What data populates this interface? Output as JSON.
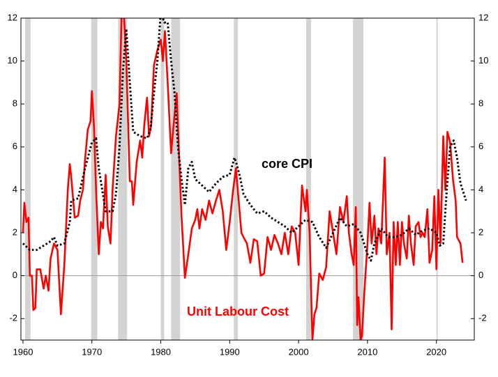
{
  "chart_data": {
    "type": "line",
    "annotations": [
      "core CPI",
      "Unit Labour Cost"
    ],
    "xlim": [
      1959.7,
      2025.5
    ],
    "xticks": [
      1960,
      1970,
      1980,
      1990,
      2000,
      2010,
      2020
    ],
    "ylim": [
      -3,
      12
    ],
    "yticks": [
      -2,
      0,
      2,
      4,
      6,
      8,
      10,
      12
    ],
    "y2lim": [
      -3,
      12
    ],
    "y2ticks": [
      -2,
      0,
      2,
      4,
      6,
      8,
      10,
      12
    ],
    "recessions": [
      [
        1960.3,
        1961.1
      ],
      [
        1969.9,
        1970.8
      ],
      [
        1973.8,
        1975.1
      ],
      [
        1980.0,
        1980.5
      ],
      [
        1981.5,
        1982.8
      ],
      [
        1990.6,
        1991.2
      ],
      [
        2001.1,
        2001.8
      ],
      [
        2007.9,
        2009.4
      ],
      [
        2020.0,
        2020.2
      ]
    ],
    "recession_color": "#d3d3d3",
    "series": [
      {
        "name": "core CPI",
        "color": "#000000",
        "style": "dotted",
        "x": [
          1960,
          1961,
          1962,
          1963,
          1964,
          1964.5,
          1965,
          1966,
          1966.8,
          1967,
          1968,
          1969,
          1970,
          1970.6,
          1971,
          1972,
          1973,
          1973.5,
          1974,
          1974.5,
          1975,
          1975.5,
          1976,
          1977,
          1978,
          1978.5,
          1979,
          1979.5,
          1980,
          1980.5,
          1981,
          1981.5,
          1982,
          1982.5,
          1983,
          1983.5,
          1984,
          1984.5,
          1985,
          1986,
          1987,
          1988,
          1989,
          1990,
          1990.7,
          1991,
          1991.5,
          1992,
          1993,
          1994,
          1995,
          1996,
          1997,
          1998,
          1999,
          2000,
          2001,
          2002,
          2003,
          2004,
          2005,
          2006,
          2007,
          2008,
          2009,
          2010,
          2010.5,
          2011,
          2012,
          2013,
          2014,
          2015,
          2016,
          2017,
          2018,
          2019,
          2020,
          2020.5,
          2021,
          2021.5,
          2022,
          2022.5,
          2023,
          2023.5,
          2024,
          2024.3
        ],
        "values": [
          1.5,
          1.2,
          1.2,
          1.4,
          1.6,
          1.8,
          1.4,
          1.5,
          2.5,
          3.5,
          3.6,
          5.0,
          6.2,
          6.4,
          5.0,
          3.0,
          3.0,
          3.8,
          6.0,
          9.5,
          11.5,
          9.0,
          6.7,
          6.5,
          6.4,
          6.8,
          8.5,
          10.0,
          12.3,
          11.8,
          11.8,
          10.0,
          8.5,
          6.0,
          4.5,
          3.3,
          5.0,
          5.3,
          4.5,
          4.2,
          3.9,
          4.3,
          4.6,
          4.7,
          5.5,
          5.2,
          4.6,
          3.8,
          3.3,
          2.9,
          3.0,
          2.7,
          2.5,
          2.3,
          2.0,
          2.3,
          2.6,
          2.5,
          1.8,
          1.3,
          2.0,
          2.7,
          2.3,
          2.4,
          2.0,
          1.0,
          0.7,
          1.5,
          2.2,
          1.8,
          1.8,
          1.9,
          2.2,
          1.9,
          2.1,
          2.2,
          2.0,
          1.4,
          1.5,
          4.0,
          6.0,
          6.3,
          5.5,
          4.3,
          3.8,
          3.5
        ]
      },
      {
        "name": "Unit Labour Cost",
        "color": "#ff0000",
        "style": "solid",
        "x": [
          1960,
          1960.2,
          1960.5,
          1960.8,
          1961,
          1961.3,
          1961.5,
          1961.8,
          1962,
          1962.5,
          1963,
          1963.3,
          1963.7,
          1964,
          1964.5,
          1965,
          1965.5,
          1966,
          1966.5,
          1966.8,
          1967,
          1967.5,
          1968,
          1968.3,
          1968.7,
          1969,
          1969.4,
          1969.8,
          1970,
          1970.3,
          1970.6,
          1971,
          1971.3,
          1971.6,
          1972,
          1972.3,
          1972.7,
          1973,
          1973.5,
          1974,
          1974.3,
          1974.6,
          1975,
          1975.5,
          1975.8,
          1976,
          1976.5,
          1977,
          1977.3,
          1977.6,
          1978,
          1978.3,
          1978.6,
          1979,
          1979.5,
          1980,
          1980.3,
          1980.6,
          1981,
          1981.5,
          1982,
          1982.3,
          1982.6,
          1983,
          1983.5,
          1984,
          1984.5,
          1985,
          1985.3,
          1985.6,
          1986,
          1986.5,
          1987,
          1987.5,
          1988,
          1988.5,
          1989,
          1989.5,
          1990,
          1990.5,
          1990.9,
          1991.3,
          1991.7,
          1992,
          1992.5,
          1993,
          1993.5,
          1994,
          1994.5,
          1995,
          1995.5,
          1996,
          1996.5,
          1997,
          1997.5,
          1998,
          1998.5,
          1999,
          1999.5,
          2000,
          2000.5,
          2001,
          2001.2,
          2001.6,
          2002,
          2002.3,
          2002.6,
          2003,
          2003.5,
          2004,
          2004.5,
          2005,
          2005.5,
          2006,
          2006.5,
          2007,
          2007.3,
          2007.7,
          2008,
          2008.3,
          2008.5,
          2008.7,
          2009,
          2009.2,
          2009.5,
          2010,
          2010.3,
          2010.6,
          2011,
          2011.3,
          2011.6,
          2012,
          2012.5,
          2012.8,
          2013.2,
          2013.5,
          2013.8,
          2014.1,
          2014.4,
          2014.7,
          2015,
          2015.3,
          2015.7,
          2016,
          2016.3,
          2016.7,
          2017,
          2017.4,
          2017.7,
          2018,
          2018.3,
          2018.7,
          2019,
          2019.4,
          2019.7,
          2020,
          2020.3,
          2020.6,
          2021,
          2021.3,
          2021.6,
          2022,
          2022.4,
          2022.8,
          2023,
          2023.5,
          2023.8
        ],
        "values": [
          2.0,
          3.4,
          2.5,
          2.7,
          0,
          0,
          -1.6,
          -1.5,
          0.3,
          0.3,
          -0.6,
          0,
          -0.7,
          0.8,
          1.5,
          1.2,
          -1.8,
          0.5,
          4.0,
          5.2,
          4.6,
          2.7,
          2.8,
          3.5,
          4.0,
          5.4,
          6.8,
          7.2,
          8.6,
          7.0,
          4.0,
          1.0,
          2.5,
          2.2,
          4.7,
          2.3,
          1.5,
          4.0,
          6.5,
          8.0,
          12.0,
          12.5,
          10.0,
          4.4,
          4.4,
          3.3,
          5.3,
          6.3,
          5.5,
          7.0,
          8.3,
          6.5,
          7.0,
          9.8,
          10.5,
          11.0,
          10.0,
          11.4,
          9.0,
          5.7,
          7.5,
          8.5,
          6.0,
          2.8,
          -0.1,
          1.0,
          2.2,
          2.6,
          3.1,
          2.2,
          3.1,
          2.6,
          3.5,
          2.9,
          3.5,
          4.0,
          3.0,
          1.2,
          2.5,
          4.0,
          5.0,
          3.5,
          2.0,
          1.8,
          1.5,
          0.6,
          1.7,
          1.6,
          0,
          0.1,
          1.8,
          1.2,
          1.9,
          1.5,
          1.0,
          2.0,
          1.0,
          2.3,
          2.0,
          0.5,
          4.2,
          3.0,
          4.0,
          2.0,
          -3.0,
          -1.8,
          -1.5,
          0.1,
          -0.2,
          0.4,
          3.0,
          2.0,
          1.0,
          3.2,
          2.5,
          3.7,
          2.0,
          1.0,
          0.5,
          3.2,
          -2.3,
          -1.0,
          -3.0,
          -2.8,
          -1.0,
          1.5,
          3.4,
          1.5,
          2.8,
          1.0,
          2.2,
          1.5,
          5.5,
          1.0,
          2.0,
          -2.5,
          2.5,
          0.5,
          2.5,
          0.5,
          2.5,
          1.5,
          0.8,
          2.8,
          1.5,
          0.5,
          2.3,
          2.5,
          1.8,
          2.0,
          1.8,
          3.1,
          0.6,
          1.2,
          3.7,
          0.3,
          4.0,
          1.5,
          6.5,
          4.0,
          6.7,
          6.2,
          4.5,
          3.5,
          1.8,
          1.5,
          0.6
        ]
      }
    ]
  }
}
